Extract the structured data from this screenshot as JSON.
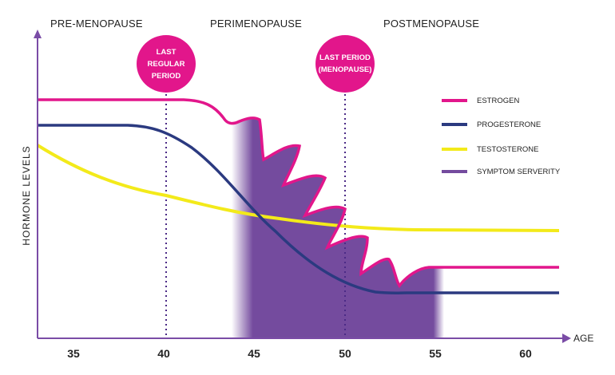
{
  "phases": [
    "PRE-MENOPAUSE",
    "PERIMENOPAUSE",
    "POSTMENOPAUSE"
  ],
  "markers": [
    {
      "label": "LAST\nREGULAR\nPERIOD",
      "age": 40
    },
    {
      "label": "LAST PERIOD\n(MENOPAUSE)",
      "age": 50
    }
  ],
  "axes": {
    "x_label": "AGE",
    "y_label": "HORMONE LEVELS",
    "x_ticks": [
      "35",
      "40",
      "45",
      "50",
      "55",
      "60"
    ]
  },
  "legend": [
    {
      "label": "ESTROGEN",
      "color": "#e2168b"
    },
    {
      "label": "PROGESTERONE",
      "color": "#2b3a80"
    },
    {
      "label": "TESTOSTERONE",
      "color": "#f3ea1a"
    },
    {
      "label": "SYMPTOM SERVERITY",
      "color": "#744b9e"
    }
  ],
  "colors": {
    "axis": "#7a4ca6",
    "marker": "#e2168b"
  }
}
